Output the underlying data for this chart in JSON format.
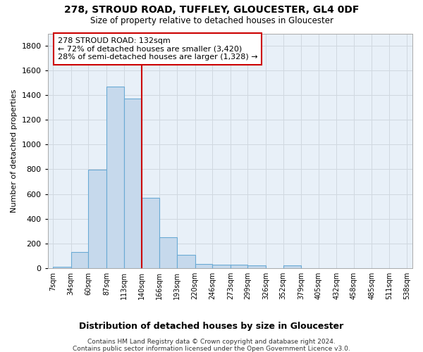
{
  "title1": "278, STROUD ROAD, TUFFLEY, GLOUCESTER, GL4 0DF",
  "title2": "Size of property relative to detached houses in Gloucester",
  "xlabel": "Distribution of detached houses by size in Gloucester",
  "ylabel": "Number of detached properties",
  "footer1": "Contains HM Land Registry data © Crown copyright and database right 2024.",
  "footer2": "Contains public sector information licensed under the Open Government Licence v3.0.",
  "annotation_title": "278 STROUD ROAD: 132sqm",
  "annotation_line1": "← 72% of detached houses are smaller (3,420)",
  "annotation_line2": "28% of semi-detached houses are larger (1,328) →",
  "bar_edges": [
    7,
    34,
    60,
    87,
    113,
    140,
    166,
    193,
    220,
    246,
    273,
    299,
    326,
    352,
    379,
    405,
    432,
    458,
    485,
    511,
    538
  ],
  "bar_heights": [
    10,
    130,
    795,
    1470,
    1375,
    570,
    248,
    108,
    35,
    28,
    28,
    20,
    0,
    20,
    0,
    0,
    0,
    0,
    0,
    0
  ],
  "bar_color": "#c6d9ec",
  "bar_edge_color": "#6aaad4",
  "vline_color": "#cc0000",
  "vline_x": 140,
  "annotation_box_color": "#cc0000",
  "grid_color": "#d0d8e0",
  "background_color": "#ffffff",
  "plot_bg_color": "#e8f0f8",
  "ylim": [
    0,
    1900
  ],
  "yticks": [
    0,
    200,
    400,
    600,
    800,
    1000,
    1200,
    1400,
    1600,
    1800
  ]
}
